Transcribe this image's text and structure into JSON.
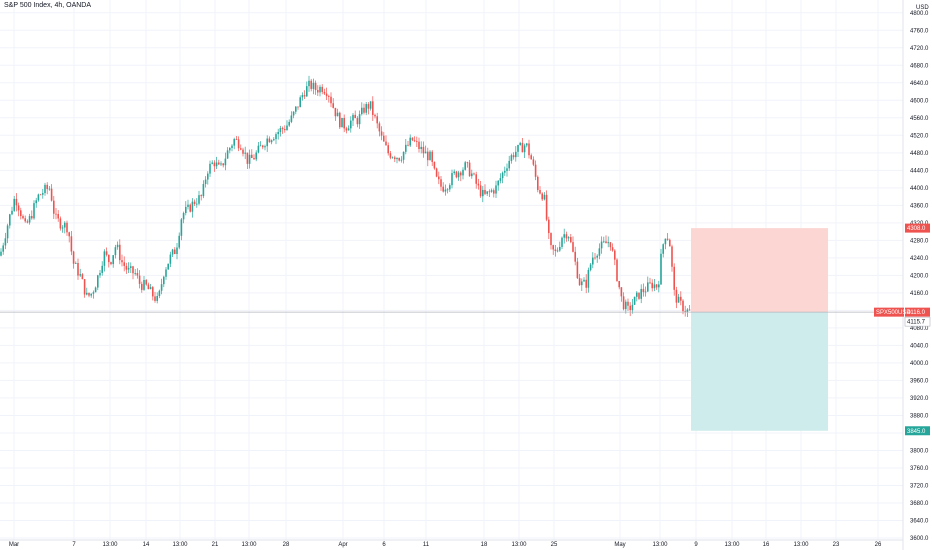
{
  "chart_data": {
    "type": "candlestick",
    "title": "S&P 500 Index, 4h, OANDA",
    "currency": "USD",
    "y_ticks": [
      4800,
      4760,
      4720,
      4680,
      4640,
      4600,
      4560,
      4520,
      4480,
      4440,
      4400,
      4360,
      4320,
      4280,
      4240,
      4200,
      4160,
      4120,
      4080,
      4040,
      4000,
      3960,
      3920,
      3880,
      3840,
      3800,
      3760,
      3720,
      3680,
      3640,
      3600
    ],
    "x_labels": [
      "Mar",
      "7",
      "13:00",
      "14",
      "13:00",
      "21",
      "13:00",
      "28",
      "Apr",
      "6",
      "11",
      "18",
      "13:00",
      "25",
      "May",
      "13:00",
      "9",
      "13:00",
      "16",
      "13:00",
      "23",
      "26"
    ],
    "colors": {
      "up": "#26a69a",
      "down": "#ef5350",
      "stop_zone": "#fcd6d3",
      "target_zone": "#cdeceb",
      "grid": "#f0f3fa"
    },
    "path": [
      [
        0,
        4245
      ],
      [
        8,
        4320
      ],
      [
        15,
        4380
      ],
      [
        20,
        4350
      ],
      [
        25,
        4310
      ],
      [
        30,
        4330
      ],
      [
        38,
        4380
      ],
      [
        45,
        4395
      ],
      [
        50,
        4400
      ],
      [
        55,
        4330
      ],
      [
        60,
        4320
      ],
      [
        68,
        4310
      ],
      [
        73,
        4230
      ],
      [
        80,
        4200
      ],
      [
        87,
        4150
      ],
      [
        92,
        4160
      ],
      [
        97,
        4190
      ],
      [
        104,
        4250
      ],
      [
        110,
        4230
      ],
      [
        116,
        4270
      ],
      [
        122,
        4230
      ],
      [
        128,
        4210
      ],
      [
        135,
        4205
      ],
      [
        140,
        4180
      ],
      [
        146,
        4175
      ],
      [
        151,
        4160
      ],
      [
        158,
        4140
      ],
      [
        164,
        4210
      ],
      [
        170,
        4240
      ],
      [
        176,
        4260
      ],
      [
        182,
        4340
      ],
      [
        188,
        4350
      ],
      [
        195,
        4370
      ],
      [
        202,
        4380
      ],
      [
        207,
        4440
      ],
      [
        214,
        4460
      ],
      [
        220,
        4440
      ],
      [
        227,
        4480
      ],
      [
        234,
        4510
      ],
      [
        241,
        4500
      ],
      [
        248,
        4460
      ],
      [
        254,
        4470
      ],
      [
        260,
        4490
      ],
      [
        266,
        4510
      ],
      [
        273,
        4520
      ],
      [
        279,
        4530
      ],
      [
        286,
        4540
      ],
      [
        292,
        4560
      ],
      [
        298,
        4590
      ],
      [
        304,
        4620
      ],
      [
        310,
        4635
      ],
      [
        316,
        4625
      ],
      [
        322,
        4630
      ],
      [
        328,
        4620
      ],
      [
        334,
        4580
      ],
      [
        340,
        4550
      ],
      [
        346,
        4540
      ],
      [
        352,
        4555
      ],
      [
        358,
        4555
      ],
      [
        364,
        4580
      ],
      [
        370,
        4590
      ],
      [
        376,
        4550
      ],
      [
        382,
        4510
      ],
      [
        388,
        4480
      ],
      [
        394,
        4475
      ],
      [
        400,
        4470
      ],
      [
        406,
        4490
      ],
      [
        412,
        4510
      ],
      [
        418,
        4495
      ],
      [
        424,
        4480
      ],
      [
        430,
        4470
      ],
      [
        436,
        4420
      ],
      [
        442,
        4400
      ],
      [
        448,
        4410
      ],
      [
        454,
        4430
      ],
      [
        460,
        4440
      ],
      [
        466,
        4450
      ],
      [
        472,
        4430
      ],
      [
        478,
        4400
      ],
      [
        484,
        4380
      ],
      [
        490,
        4390
      ],
      [
        496,
        4400
      ],
      [
        502,
        4430
      ],
      [
        508,
        4460
      ],
      [
        514,
        4480
      ],
      [
        520,
        4490
      ],
      [
        526,
        4500
      ],
      [
        532,
        4460
      ],
      [
        538,
        4400
      ],
      [
        544,
        4380
      ],
      [
        550,
        4260
      ],
      [
        556,
        4250
      ],
      [
        562,
        4290
      ],
      [
        568,
        4300
      ],
      [
        574,
        4240
      ],
      [
        580,
        4180
      ],
      [
        586,
        4180
      ],
      [
        592,
        4240
      ],
      [
        598,
        4260
      ],
      [
        604,
        4270
      ],
      [
        610,
        4280
      ],
      [
        616,
        4210
      ],
      [
        622,
        4140
      ],
      [
        628,
        4120
      ],
      [
        634,
        4140
      ],
      [
        640,
        4160
      ],
      [
        646,
        4170
      ],
      [
        652,
        4180
      ],
      [
        658,
        4175
      ],
      [
        662,
        4260
      ],
      [
        666,
        4300
      ],
      [
        670,
        4270
      ],
      [
        674,
        4160
      ],
      [
        678,
        4140
      ],
      [
        682,
        4130
      ],
      [
        686,
        4120
      ],
      [
        690,
        4116
      ]
    ],
    "last_price": 4116.0,
    "last_price_label": "SPX500USD",
    "previous_close": 4115.7,
    "position": {
      "type": "short",
      "entry": 4116.0,
      "stop": 4308.0,
      "target": 3845.0,
      "x_start_index_label": "9",
      "x_end_index_label": "23"
    },
    "y_scale": {
      "min": 3600,
      "max": 4820
    },
    "grid": true
  }
}
